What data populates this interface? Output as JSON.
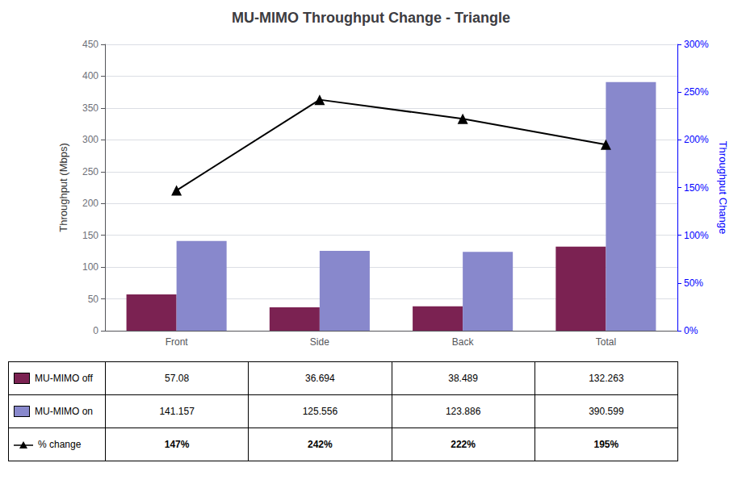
{
  "chart_data": {
    "type": "bar",
    "title": "MU-MIMO Throughput Change - Triangle",
    "categories": [
      "Front",
      "Side",
      "Back",
      "Total"
    ],
    "series": [
      {
        "name": "MU-MIMO off",
        "color": "#7B2252",
        "values": [
          57.08,
          36.694,
          38.489,
          132.263
        ]
      },
      {
        "name": "MU-MIMO on",
        "color": "#8888CC",
        "values": [
          141.157,
          125.556,
          123.886,
          390.599
        ]
      },
      {
        "name": "% change",
        "type": "line",
        "axis": "y2",
        "color": "#000000",
        "marker": "triangle",
        "values": [
          147,
          242,
          222,
          195
        ],
        "value_labels": [
          "147%",
          "242%",
          "222%",
          "195%"
        ]
      }
    ],
    "ylabel": "Throughput (Mbps)",
    "y2label": "Throughput Change",
    "ylim": [
      0,
      450
    ],
    "yticks": [
      0,
      50,
      100,
      150,
      200,
      250,
      300,
      350,
      400,
      450
    ],
    "y2lim": [
      0,
      300
    ],
    "y2ticks": [
      {
        "value": 0,
        "label": "0%"
      },
      {
        "value": 50,
        "label": "50%"
      },
      {
        "value": 100,
        "label": "100%"
      },
      {
        "value": 150,
        "label": "150%"
      },
      {
        "value": 200,
        "label": "200%"
      },
      {
        "value": 250,
        "label": "250%"
      },
      {
        "value": 300,
        "label": "300%"
      }
    ],
    "grid": true
  }
}
